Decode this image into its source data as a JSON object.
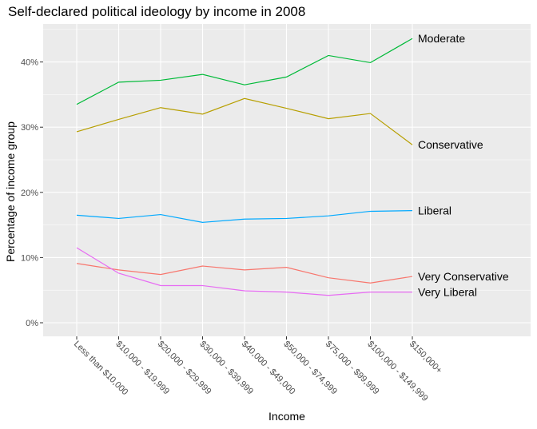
{
  "chart_data": {
    "type": "line",
    "title": "Self-declared political ideology by income in 2008",
    "xlabel": "Income",
    "ylabel": "Percentage of income group",
    "categories": [
      "Less than $10,000",
      "$10,000 - $19,999",
      "$20,000 - $29,999",
      "$30,000 - $39,999",
      "$40,000 - $49,000",
      "$50,000 - $74,999",
      "$75,000 - $99,999",
      "$100,000 - $149,999",
      "$150,000+"
    ],
    "y_ticks": [
      "0%",
      "10%",
      "20%",
      "30%",
      "40%"
    ],
    "ylim": [
      -2,
      45
    ],
    "grid": true,
    "legend": "direct labels at line ends",
    "series": [
      {
        "name": "Moderate",
        "color": "#00BA38",
        "values": [
          33.5,
          36.9,
          37.2,
          38.1,
          36.5,
          37.7,
          41.0,
          39.9,
          43.6
        ]
      },
      {
        "name": "Conservative",
        "color": "#B79F00",
        "values": [
          29.3,
          31.2,
          33.0,
          32.0,
          34.4,
          32.9,
          31.3,
          32.1,
          27.3
        ]
      },
      {
        "name": "Liberal",
        "color": "#00A9FF",
        "values": [
          16.5,
          16.0,
          16.6,
          15.4,
          15.9,
          16.0,
          16.4,
          17.1,
          17.2
        ]
      },
      {
        "name": "Very Conservative",
        "color": "#F8766D",
        "values": [
          9.1,
          8.1,
          7.4,
          8.7,
          8.1,
          8.5,
          6.9,
          6.1,
          7.1
        ]
      },
      {
        "name": "Very Liberal",
        "color": "#E76BF3",
        "values": [
          11.5,
          7.6,
          5.7,
          5.7,
          4.9,
          4.7,
          4.2,
          4.7,
          4.7
        ]
      }
    ]
  }
}
